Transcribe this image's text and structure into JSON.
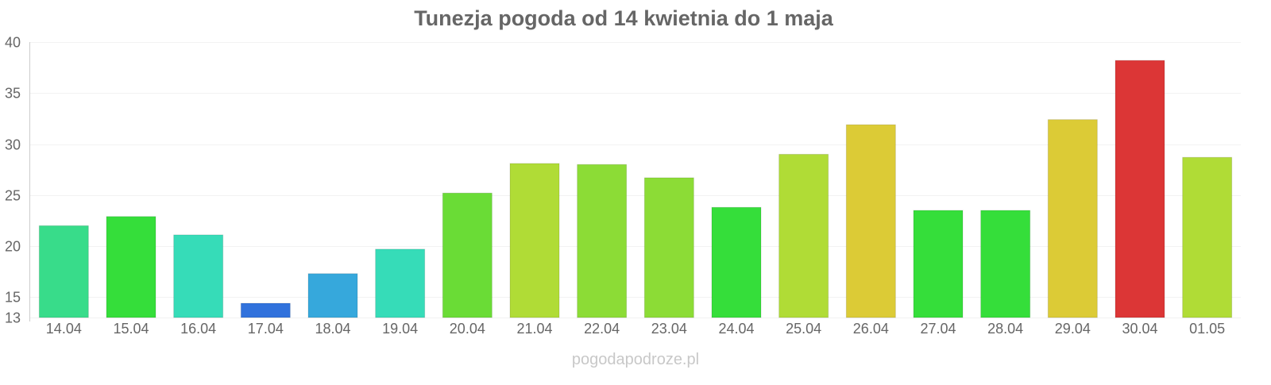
{
  "chart_data": {
    "type": "bar",
    "title": "Tunezja pogoda od 14 kwietnia do 1 maja",
    "xlabel": "",
    "ylabel": "",
    "ylim": [
      13,
      40
    ],
    "yticks": [
      13,
      15,
      20,
      25,
      30,
      35,
      40
    ],
    "grid": true,
    "categories": [
      "14.04",
      "15.04",
      "16.04",
      "17.04",
      "18.04",
      "19.04",
      "20.04",
      "21.04",
      "22.04",
      "23.04",
      "24.04",
      "25.04",
      "26.04",
      "27.04",
      "28.04",
      "29.04",
      "30.04",
      "01.05"
    ],
    "values": [
      22.0,
      22.9,
      21.1,
      14.4,
      17.3,
      19.7,
      25.2,
      28.1,
      28.0,
      26.7,
      23.8,
      29.0,
      31.9,
      23.5,
      23.5,
      32.4,
      38.2,
      28.7
    ],
    "colors": [
      "#38dc8a",
      "#35de3a",
      "#36dcb8",
      "#3172dc",
      "#36a8dc",
      "#36dcb8",
      "#6adc36",
      "#b0dc36",
      "#8cdc36",
      "#8cdc36",
      "#35de3a",
      "#b0dc36",
      "#dccb36",
      "#35de3a",
      "#35de3a",
      "#dccb36",
      "#dc3636",
      "#b0dc36"
    ]
  },
  "watermark": "pogodapodroze.pl"
}
